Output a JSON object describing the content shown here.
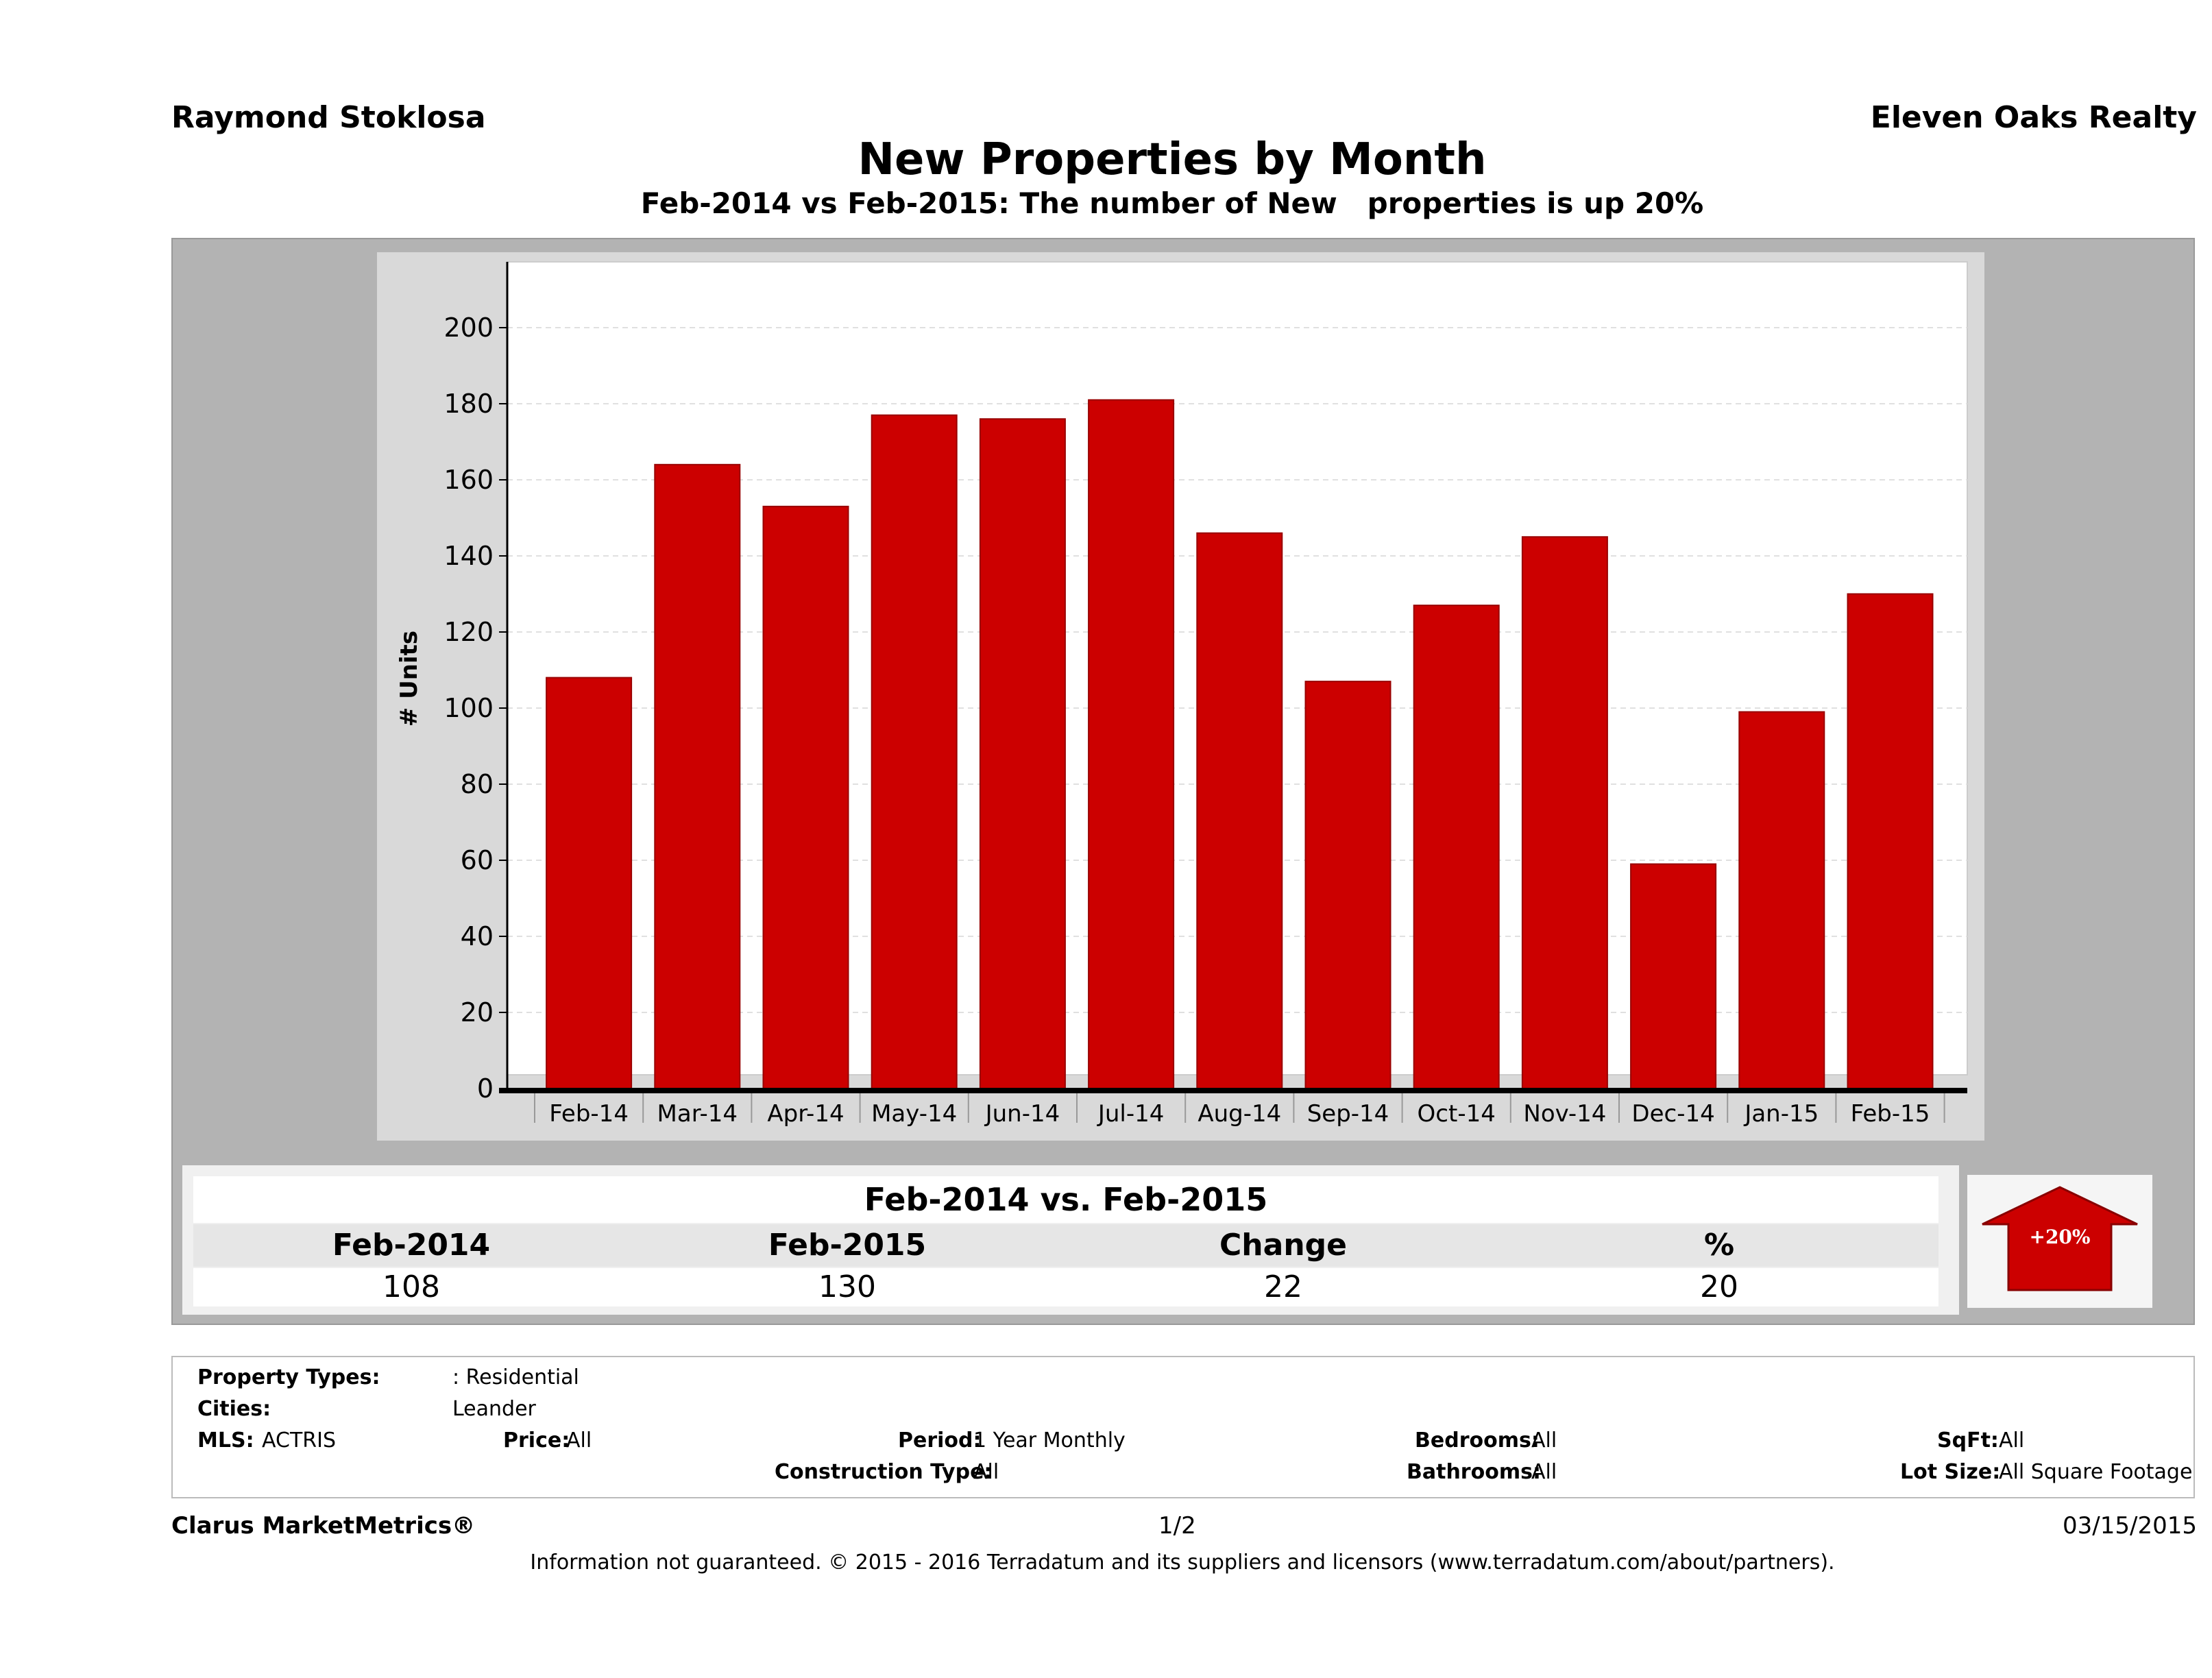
{
  "header": {
    "agent_name": "Raymond Stoklosa",
    "brokerage": "Eleven Oaks Realty"
  },
  "chart_data": {
    "type": "bar",
    "title": "New Properties by Month",
    "subtitle": "Feb-2014 vs Feb-2015: The number of New   properties is up 20%",
    "ylabel": "# Units",
    "xlabel": "",
    "ylim": [
      0,
      210
    ],
    "yticks": [
      0,
      20,
      40,
      60,
      80,
      100,
      120,
      140,
      160,
      180,
      200
    ],
    "categories": [
      "Feb-14",
      "Mar-14",
      "Apr-14",
      "May-14",
      "Jun-14",
      "Jul-14",
      "Aug-14",
      "Sep-14",
      "Oct-14",
      "Nov-14",
      "Dec-14",
      "Jan-15",
      "Feb-15"
    ],
    "values": [
      108,
      164,
      153,
      177,
      176,
      181,
      146,
      107,
      127,
      145,
      59,
      99,
      130
    ],
    "bar_color": "#cc0000",
    "grid": true
  },
  "comparison": {
    "title": "Feb-2014 vs. Feb-2015",
    "columns": [
      "Feb-2014",
      "Feb-2015",
      "Change",
      "%"
    ],
    "values": [
      "108",
      "130",
      "22",
      "20"
    ],
    "badge": "+20%",
    "badge_color": "#cc0000"
  },
  "details": {
    "property_types_label": "Property Types:",
    "property_types_value": ": Residential",
    "cities_label": "Cities:",
    "cities_value": "Leander",
    "mls_label": "MLS:",
    "mls_value": "ACTRIS",
    "price_label": "Price:",
    "price_value": "All",
    "period_label": "Period:",
    "period_value": "1 Year Monthly",
    "construction_label": "Construction Type:",
    "construction_value": "All",
    "bedrooms_label": "Bedrooms:",
    "bedrooms_value": "All",
    "bathrooms_label": "Bathrooms:",
    "bathrooms_value": "All",
    "sqft_label": "SqFt:",
    "sqft_value": "All",
    "lotsize_label": "Lot Size:",
    "lotsize_value": "All Square Footage"
  },
  "footer": {
    "brand": "Clarus MarketMetrics®",
    "page": "1/2",
    "date": "03/15/2015",
    "disclaimer": "Information not guaranteed. © 2015 - 2016 Terradatum and its suppliers and licensors (www.terradatum.com/about/partners)."
  }
}
